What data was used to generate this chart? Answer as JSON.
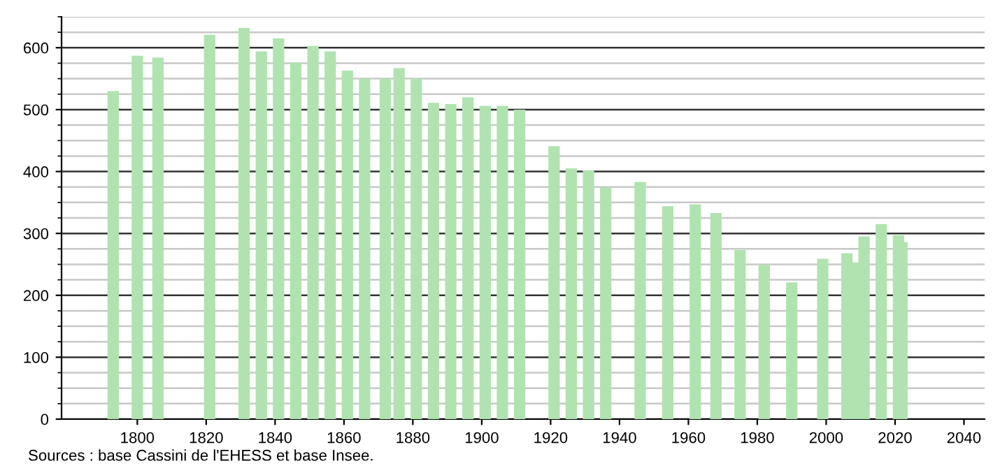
{
  "chart_data": {
    "type": "bar",
    "x": [
      1793,
      1800,
      1806,
      1821,
      1831,
      1836,
      1841,
      1846,
      1851,
      1856,
      1861,
      1866,
      1872,
      1876,
      1881,
      1886,
      1891,
      1896,
      1901,
      1906,
      1911,
      1921,
      1926,
      1931,
      1936,
      1946,
      1954,
      1962,
      1968,
      1975,
      1982,
      1990,
      1999,
      2006,
      2008,
      2011,
      2016,
      2021,
      2022
    ],
    "values": [
      530,
      587,
      584,
      621,
      632,
      594,
      615,
      576,
      603,
      594,
      563,
      550,
      550,
      567,
      550,
      511,
      509,
      520,
      506,
      506,
      500,
      441,
      405,
      402,
      374,
      383,
      344,
      347,
      333,
      273,
      249,
      221,
      259,
      268,
      253,
      295,
      315,
      297,
      286
    ],
    "color": "#b0e3b0",
    "xlim": [
      1778,
      2046
    ],
    "ylim": [
      0,
      650
    ],
    "xticks": [
      1800,
      1820,
      1840,
      1860,
      1880,
      1900,
      1920,
      1940,
      1960,
      1980,
      2000,
      2020,
      2040
    ],
    "yticks": [
      0,
      100,
      200,
      300,
      400,
      500,
      600
    ],
    "grid": "y",
    "annotations": [
      "Sources : base Cassini de l'EHESS et base Insee."
    ]
  }
}
